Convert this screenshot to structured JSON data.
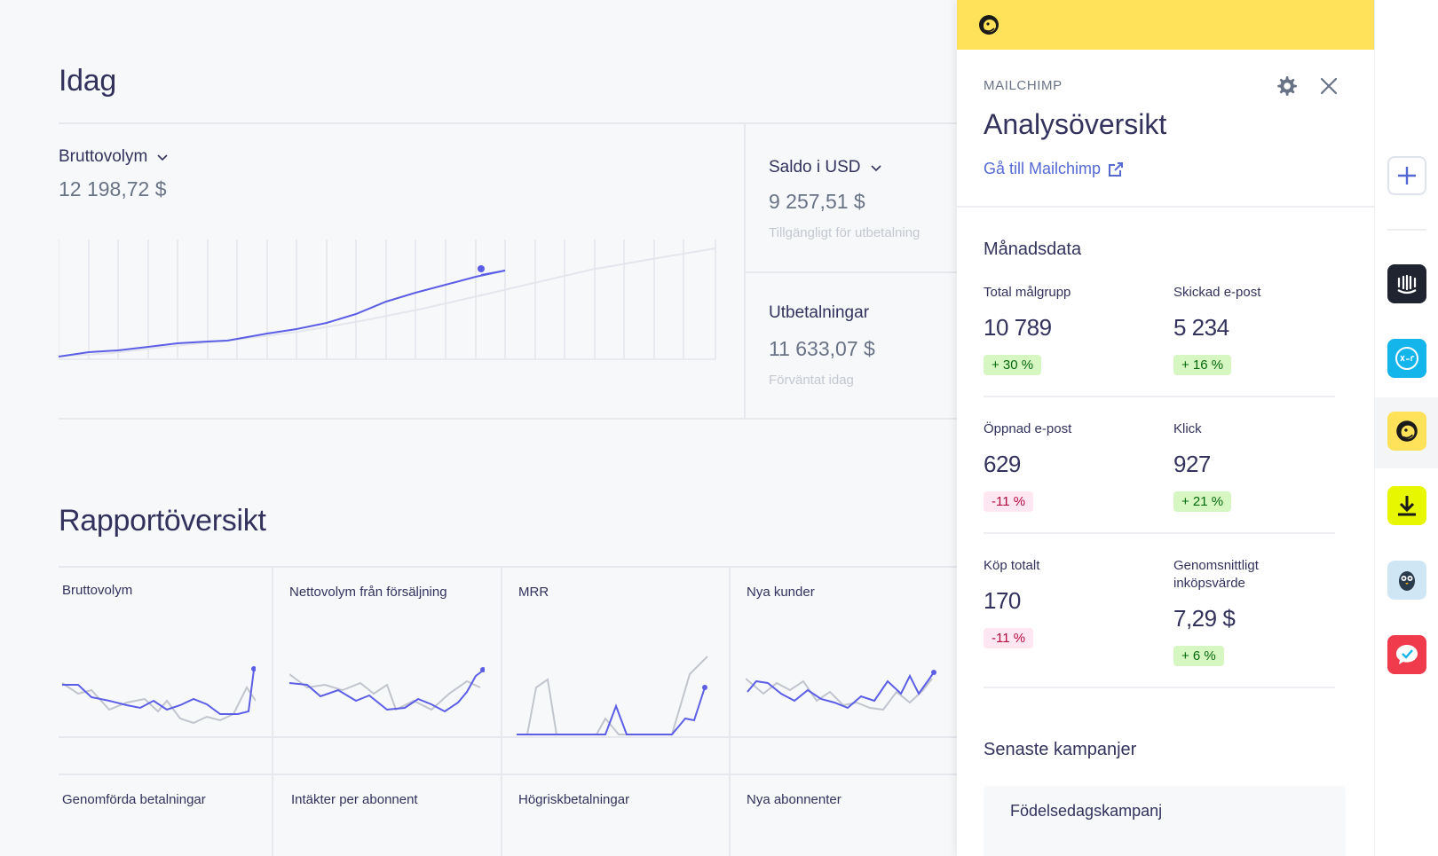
{
  "main": {
    "today_title": "Idag",
    "gross": {
      "label": "Bruttovolym",
      "value": "12 198,72 $"
    },
    "balance": {
      "label": "Saldo i USD",
      "value": "9 257,51 $",
      "sub": "Tillgängligt för utbetalning"
    },
    "payouts": {
      "label": "Utbetalningar",
      "value": "11 633,07 $",
      "sub": "Förväntat idag"
    },
    "report_title": "Rapportöversikt",
    "report_cells": [
      "Bruttovolym",
      "Nettovolym från försäljning",
      "MRR",
      "Nya kunder",
      "Genomförda betalningar",
      "Intäkter per abonnent",
      "Högriskbetalningar",
      "Nya abonnenter"
    ]
  },
  "panel": {
    "brand": "MAILCHIMP",
    "title": "Analysöversikt",
    "link": "Gå till Mailchimp",
    "monthly_title": "Månadsdata",
    "stats": [
      {
        "label": "Total målgrupp",
        "value": "10 789",
        "change": "+ 30 %",
        "dir": "up"
      },
      {
        "label": "Skickad e-post",
        "value": "5 234",
        "change": "+ 16 %",
        "dir": "up"
      },
      {
        "label": "Öppnad e-post",
        "value": "629",
        "change": "-11 %",
        "dir": "down"
      },
      {
        "label": "Klick",
        "value": "927",
        "change": "+ 21 %",
        "dir": "up"
      },
      {
        "label": "Köp totalt",
        "value": "170",
        "change": "-11 %",
        "dir": "down"
      },
      {
        "label": "Genomsnittligt inköpsvärde",
        "value": "7,29 $",
        "change": "+ 6 %",
        "dir": "up"
      }
    ],
    "campaigns_title": "Senaste kampanjer",
    "campaign_name": "Födelsedagskampanj"
  },
  "colors": {
    "accent": "#5469d4",
    "mailchimp_yellow": "#ffe15a",
    "up_bg": "#d7f7c2",
    "down_bg": "#ffe7f2"
  },
  "icons": {
    "rail": [
      "plus-icon",
      "intercom-icon",
      "xero-icon",
      "mailchimp-icon",
      "download-icon",
      "owl-icon",
      "chat-check-icon"
    ]
  }
}
